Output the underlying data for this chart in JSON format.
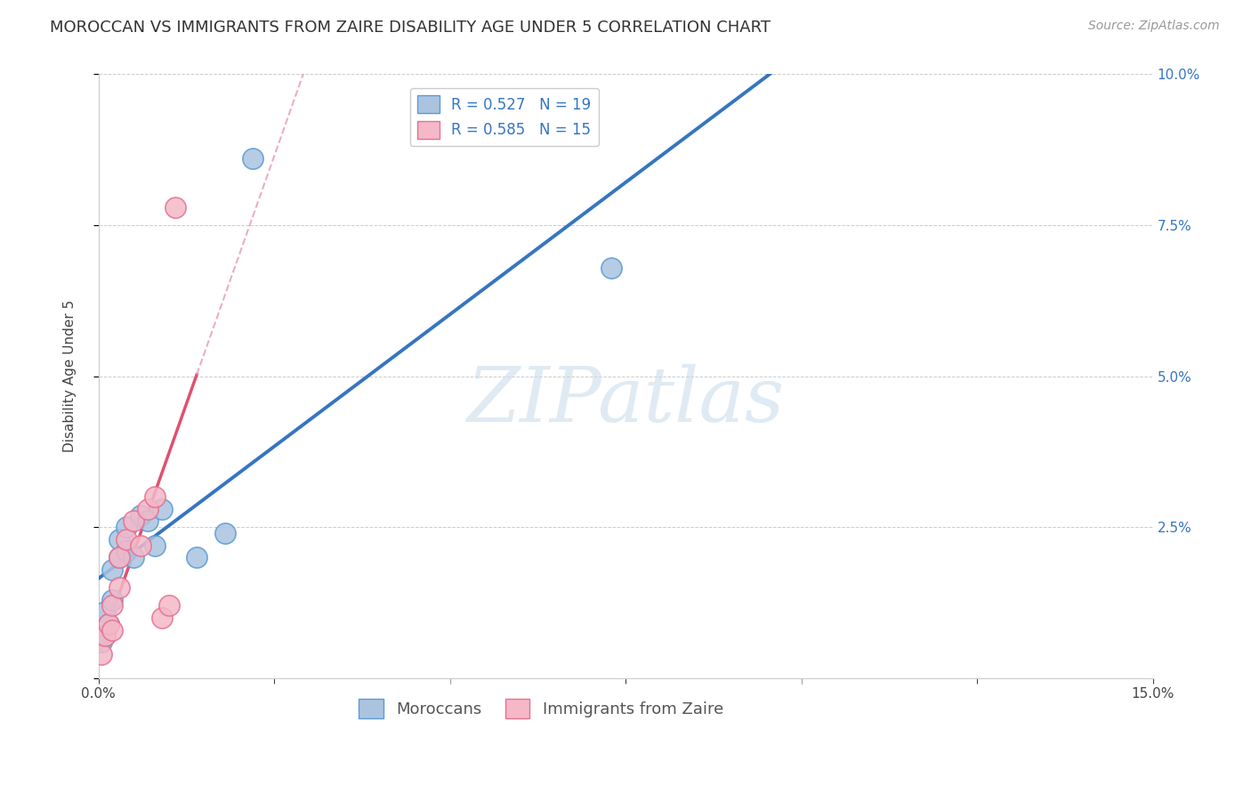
{
  "title": "MOROCCAN VS IMMIGRANTS FROM ZAIRE DISABILITY AGE UNDER 5 CORRELATION CHART",
  "source": "Source: ZipAtlas.com",
  "xlabel": "",
  "ylabel": "Disability Age Under 5",
  "xlim": [
    0.0,
    0.15
  ],
  "ylim": [
    0.0,
    0.1
  ],
  "xtick_vals": [
    0.0,
    0.025,
    0.05,
    0.075,
    0.1,
    0.125,
    0.15
  ],
  "ytick_vals": [
    0.0,
    0.025,
    0.05,
    0.075,
    0.1
  ],
  "moroccans": {
    "x": [
      0.0005,
      0.001,
      0.001,
      0.0015,
      0.002,
      0.002,
      0.003,
      0.003,
      0.004,
      0.004,
      0.005,
      0.006,
      0.007,
      0.008,
      0.009,
      0.014,
      0.018,
      0.022,
      0.073
    ],
    "y": [
      0.006,
      0.007,
      0.011,
      0.009,
      0.013,
      0.018,
      0.02,
      0.023,
      0.021,
      0.025,
      0.02,
      0.027,
      0.026,
      0.022,
      0.028,
      0.02,
      0.024,
      0.086,
      0.068
    ],
    "color": "#aac4e0",
    "edge_color": "#5b9bd5",
    "label": "Moroccans",
    "R": 0.527,
    "N": 19
  },
  "zaire": {
    "x": [
      0.0005,
      0.001,
      0.0015,
      0.002,
      0.002,
      0.003,
      0.003,
      0.004,
      0.005,
      0.006,
      0.007,
      0.008,
      0.009,
      0.01,
      0.011
    ],
    "y": [
      0.004,
      0.007,
      0.009,
      0.008,
      0.012,
      0.015,
      0.02,
      0.023,
      0.026,
      0.022,
      0.028,
      0.03,
      0.01,
      0.012,
      0.078
    ],
    "color": "#f4b8c8",
    "edge_color": "#e87090",
    "label": "Immigrants from Zaire",
    "R": 0.585,
    "N": 15
  },
  "background_color": "#ffffff",
  "grid_color": "#cccccc",
  "watermark_text": "ZIPatlas",
  "title_fontsize": 13,
  "axis_label_fontsize": 11,
  "tick_fontsize": 11,
  "legend_fontsize": 12,
  "source_fontsize": 10
}
